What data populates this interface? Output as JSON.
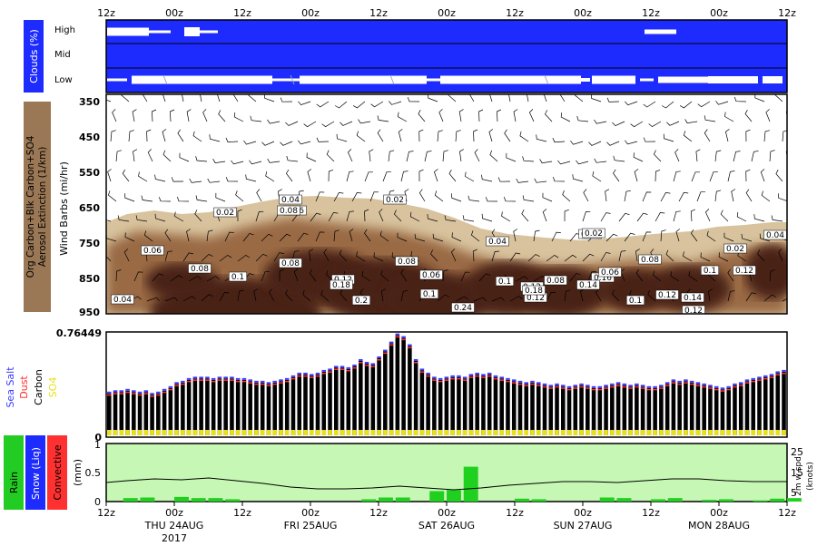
{
  "top_axis_ticks": [
    "12z",
    "00z",
    "12z",
    "00z",
    "12z",
    "00z",
    "12z",
    "00z",
    "12z",
    "00z",
    "12z"
  ],
  "bottom_axis_ticks": [
    "12z",
    "00z",
    "12z",
    "00z",
    "12z",
    "00z",
    "12z",
    "00z",
    "12z",
    "00z",
    "12z"
  ],
  "day_labels": [
    "THU 24AUG",
    "FRI 25AUG",
    "SAT 26AUG",
    "SUN 27AUG",
    "MON 28AUG"
  ],
  "year_label": "2017",
  "colors": {
    "cloud_bg": "#1d2bff",
    "aerosol_light": "#d8c39e",
    "aerosol_mid": "#9a6b45",
    "aerosol_dark": "#4a2412",
    "precip_bg": "#c7f7b5",
    "precip_bar": "#1fd01f",
    "carbon_bar": "#000000",
    "sea_salt": "#3a3aff",
    "dust": "#ff3030",
    "so4": "#e9e01a"
  },
  "chart_data": [
    {
      "panel": "clouds",
      "type": "table",
      "side_label": "Clouds (%)",
      "row_labels": [
        "High",
        "Mid",
        "Low"
      ]
    },
    {
      "panel": "aerosol_wind",
      "type": "heatmap",
      "side_label_lines": [
        "Org Carbon+Blk Carbon+SO4",
        "Aerosol Extinction (1/km)"
      ],
      "ylabel": "Wind Barbs (mi/hr)",
      "yticks": [
        350,
        450,
        550,
        650,
        750,
        850,
        950
      ],
      "contour_labels": [
        "0.04",
        "0.02",
        "0.02",
        "0.06",
        "0.02",
        "0.02",
        "0.04",
        "0.08",
        "0.08",
        "0.1",
        "0.12",
        "0.06",
        "0.04",
        "0.08",
        "0.08",
        "0.1",
        "0.06",
        "0.12",
        "0.16",
        "0.18",
        "0.1",
        "0.12",
        "0.04",
        "0.12",
        "0.2",
        "0.24",
        "0.14",
        "0.18",
        "0.1",
        "0.12",
        "0.14",
        "0.08",
        "0.06",
        "0.1",
        "0.12",
        "0.08",
        "0.02"
      ]
    },
    {
      "panel": "aerosol_column",
      "type": "bar",
      "ymax_label": "0.76449",
      "ymin_label": "0",
      "legend": [
        "Sea Salt",
        "Dust",
        "Carbon",
        "SO4"
      ],
      "ylim": [
        0,
        0.76449
      ],
      "values": [
        0.31,
        0.32,
        0.32,
        0.33,
        0.32,
        0.31,
        0.32,
        0.3,
        0.31,
        0.33,
        0.35,
        0.38,
        0.39,
        0.41,
        0.42,
        0.42,
        0.42,
        0.41,
        0.42,
        0.42,
        0.42,
        0.41,
        0.41,
        0.4,
        0.39,
        0.39,
        0.38,
        0.39,
        0.4,
        0.41,
        0.43,
        0.45,
        0.45,
        0.44,
        0.45,
        0.47,
        0.48,
        0.5,
        0.5,
        0.49,
        0.51,
        0.55,
        0.53,
        0.52,
        0.57,
        0.62,
        0.68,
        0.74,
        0.72,
        0.66,
        0.55,
        0.48,
        0.45,
        0.42,
        0.41,
        0.42,
        0.43,
        0.43,
        0.42,
        0.44,
        0.45,
        0.44,
        0.45,
        0.43,
        0.42,
        0.41,
        0.4,
        0.39,
        0.38,
        0.39,
        0.38,
        0.37,
        0.36,
        0.37,
        0.36,
        0.35,
        0.36,
        0.37,
        0.36,
        0.35,
        0.35,
        0.36,
        0.37,
        0.38,
        0.37,
        0.36,
        0.37,
        0.36,
        0.35,
        0.35,
        0.36,
        0.38,
        0.4,
        0.39,
        0.4,
        0.39,
        0.38,
        0.37,
        0.36,
        0.35,
        0.34,
        0.35,
        0.37,
        0.38,
        0.4,
        0.41,
        0.42,
        0.43,
        0.44,
        0.46,
        0.47
      ]
    },
    {
      "panel": "precip",
      "type": "bar",
      "legend": [
        "Rain",
        "Snow (Liq)",
        "Convective"
      ],
      "ylabel": "(mm)",
      "yticks": [
        "0",
        "0.5",
        "1"
      ],
      "right_yticks": [
        "25",
        "15",
        "5"
      ],
      "right_ylabel": "2m w spd",
      "right_ylabel_unit": "(knots)",
      "ylim": [
        0,
        1
      ],
      "x": [
        2,
        3,
        5,
        6,
        7,
        8,
        16,
        17,
        18,
        20,
        21,
        22,
        25,
        26,
        30,
        31,
        33,
        34,
        36,
        37,
        39,
        40,
        41,
        43,
        45,
        47,
        48,
        50,
        51
      ],
      "values": [
        0.06,
        0.07,
        0.08,
        0.06,
        0.06,
        0.04,
        0.04,
        0.07,
        0.07,
        0.18,
        0.2,
        0.6,
        0.05,
        0.04,
        0.07,
        0.06,
        0.04,
        0.06,
        0.03,
        0.04,
        0.02,
        0.05,
        0.06,
        0.04,
        0.03,
        0.28,
        0.06,
        0.05,
        0.06
      ]
    }
  ]
}
